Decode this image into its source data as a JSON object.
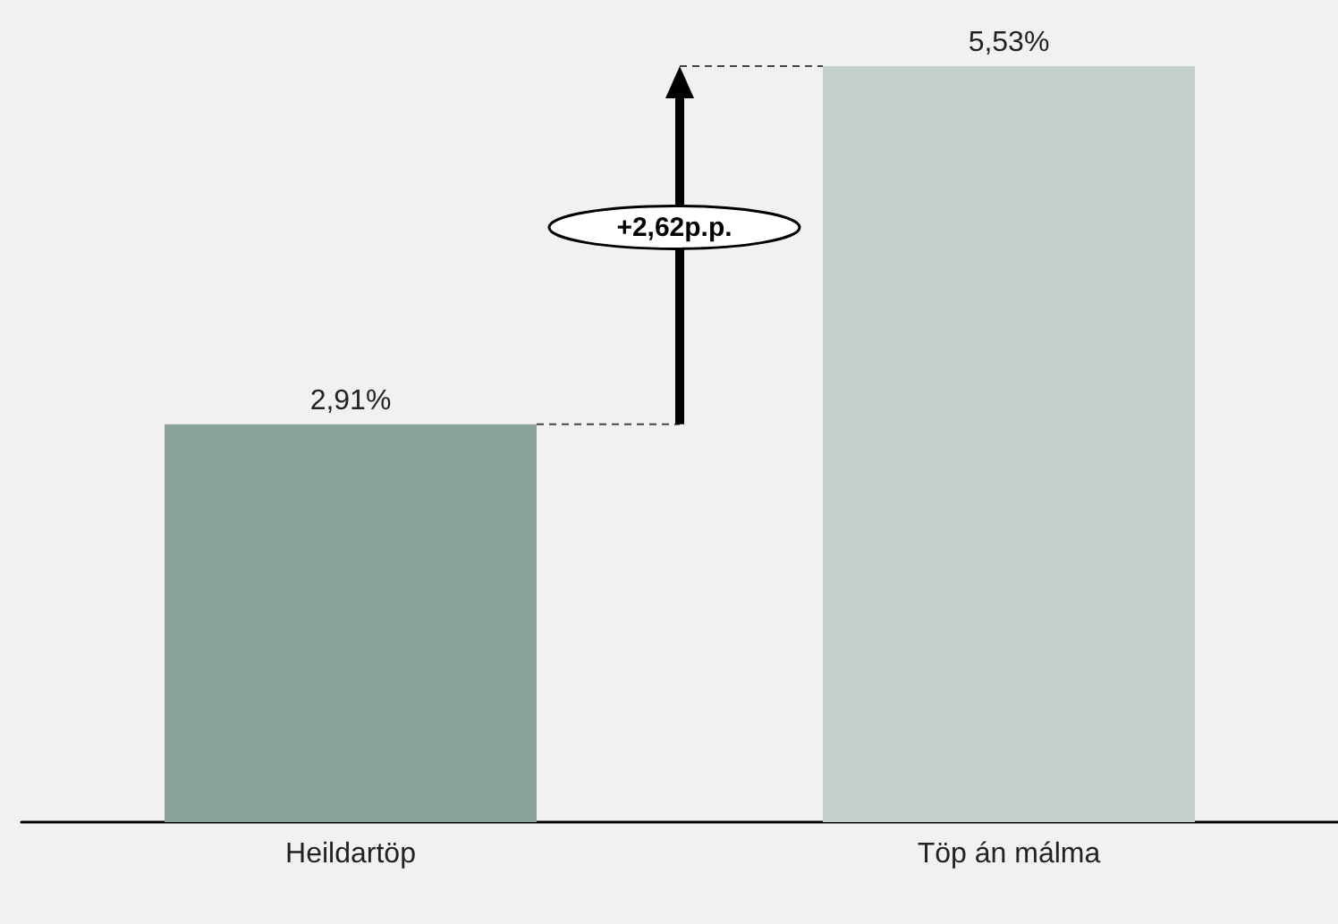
{
  "chart_data": {
    "type": "bar",
    "categories": [
      "Heildartöp",
      "Töp án málma"
    ],
    "values": [
      2.91,
      5.53
    ],
    "colors": [
      "#8aa398",
      "#c5d1cc"
    ],
    "value_labels": [
      "2,91%",
      "5,53%"
    ],
    "annotations": [
      "+2,62p.p."
    ]
  }
}
